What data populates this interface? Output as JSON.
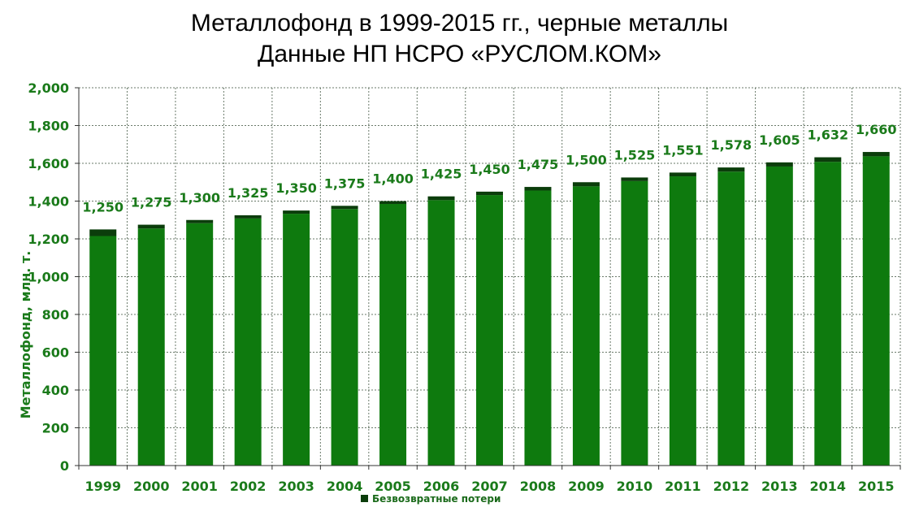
{
  "chart_data": {
    "type": "bar",
    "title": "Металлофонд  в 1999-2015 гг., черные металлы",
    "subtitle": "Данные НП НСРО «РУСЛОМ.КОМ»",
    "ylabel": "Металлофонд, млн. т.",
    "xlabel": "",
    "ylim": [
      0,
      2000
    ],
    "yticks": [
      "0",
      "200",
      "400",
      "600",
      "800",
      "1,000",
      "1,200",
      "1,400",
      "1,600",
      "1,800",
      "2,000"
    ],
    "ytick_values": [
      0,
      200,
      400,
      600,
      800,
      1000,
      1200,
      1400,
      1600,
      1800,
      2000
    ],
    "grid": true,
    "legend_position": "bottom",
    "categories": [
      "1999",
      "2000",
      "2001",
      "2002",
      "2003",
      "2004",
      "2005",
      "2006",
      "2007",
      "2008",
      "2009",
      "2010",
      "2011",
      "2012",
      "2013",
      "2014",
      "2015"
    ],
    "values": [
      1250,
      1275,
      1300,
      1325,
      1350,
      1375,
      1400,
      1425,
      1450,
      1475,
      1500,
      1525,
      1551,
      1578,
      1605,
      1632,
      1660
    ],
    "data_labels": [
      "1,250",
      "1,275",
      "1,300",
      "1,325",
      "1,350",
      "1,375",
      "1,400",
      "1,425",
      "1,450",
      "1,475",
      "1,500",
      "1,525",
      "1,551",
      "1,578",
      "1,605",
      "1,632",
      "1,660"
    ],
    "series": [
      {
        "values": [
          1215,
          1255,
          1283,
          1308,
          1333,
          1358,
          1385,
          1405,
          1432,
          1456,
          1478,
          1506,
          1531,
          1556,
          1583,
          1608,
          1637
        ],
        "color": "#0e7a0e"
      },
      {
        "name": "Безвозвратные потери",
        "values": [
          35,
          20,
          17,
          17,
          17,
          17,
          15,
          20,
          18,
          19,
          22,
          19,
          20,
          22,
          22,
          24,
          23
        ],
        "color": "#0b3d0b"
      }
    ],
    "colors": {
      "bar": "#0e7a0e",
      "loss": "#0b3d0b",
      "text": "#1a7a1a",
      "grid": "#6a7a6a"
    }
  }
}
